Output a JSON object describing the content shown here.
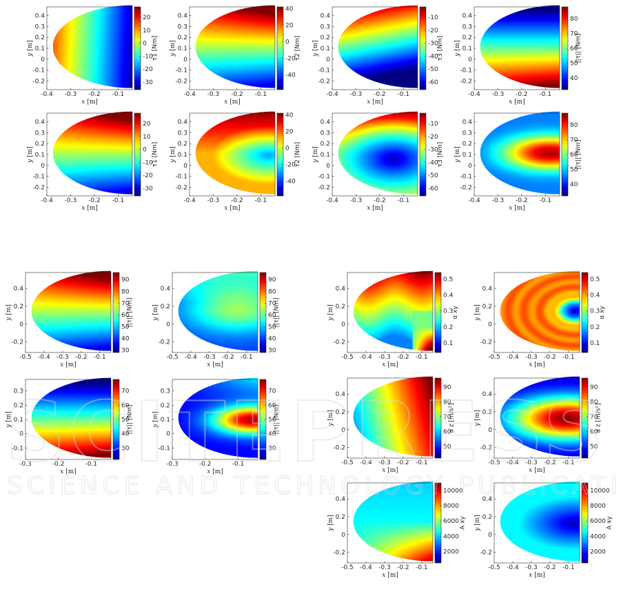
{
  "watermark": {
    "line1": "SCITEPRESS",
    "line2": "SCIENCE AND TECHNOLOGY PUBLICATIONS"
  },
  "colors": {
    "colormap": "jet",
    "axis": "#262626"
  },
  "chart_data": [
    {
      "type": "heatmap",
      "id": "p1",
      "xlabel": "x",
      "xunit": "[m]",
      "ylabel": "y",
      "yunit": "[m]",
      "cbar_label": "τ1 [Nm]",
      "xlim": [
        -0.4,
        -0.04
      ],
      "ylim": [
        -0.28,
        0.48
      ],
      "xticks": [
        -0.4,
        -0.3,
        -0.2,
        -0.1
      ],
      "yticks": [
        -0.2,
        -0.1,
        0,
        0.1,
        0.2,
        0.3,
        0.4
      ],
      "clim": [
        -36,
        28
      ],
      "cticks": [
        -30,
        -20,
        -10,
        0,
        10,
        20
      ],
      "pattern": "xgrad-pos"
    },
    {
      "type": "heatmap",
      "id": "p2",
      "xlabel": "x",
      "xunit": "[m]",
      "ylabel": "y",
      "yunit": "[m]",
      "cbar_label": "τ2 [Nm]",
      "xlim": [
        -0.4,
        -0.04
      ],
      "ylim": [
        -0.28,
        0.48
      ],
      "xticks": [
        -0.4,
        -0.3,
        -0.2,
        -0.1
      ],
      "yticks": [
        -0.2,
        -0.1,
        0,
        0.1,
        0.2,
        0.3,
        0.4
      ],
      "clim": [
        -58,
        42
      ],
      "cticks": [
        -40,
        -20,
        0,
        20,
        40
      ],
      "pattern": "ygrad-corner"
    },
    {
      "type": "heatmap",
      "id": "p3",
      "xlabel": "x",
      "xunit": "[m]",
      "ylabel": "y",
      "yunit": "[m]",
      "cbar_label": "τ3 [Nm]",
      "xlim": [
        -0.4,
        -0.04
      ],
      "ylim": [
        -0.28,
        0.48
      ],
      "xticks": [
        -0.4,
        -0.3,
        -0.2,
        -0.1
      ],
      "yticks": [
        -0.2,
        -0.1,
        0,
        0.1,
        0.2,
        0.3,
        0.4
      ],
      "clim": [
        -66,
        -2
      ],
      "cticks": [
        -60,
        -50,
        -40,
        -30,
        -20,
        -10
      ],
      "pattern": "ygrad-up"
    },
    {
      "type": "heatmap",
      "id": "p4",
      "xlabel": "x",
      "xunit": "[m]",
      "ylabel": "y",
      "yunit": "[m]",
      "cbar_label": "||τ|| [Nm]",
      "xlim": [
        -0.4,
        -0.04
      ],
      "ylim": [
        -0.28,
        0.48
      ],
      "xticks": [
        -0.4,
        -0.3,
        -0.2,
        -0.1
      ],
      "yticks": [
        -0.2,
        -0.1,
        0,
        0.1,
        0.2,
        0.3,
        0.4
      ],
      "clim": [
        32,
        88
      ],
      "cticks": [
        40,
        50,
        60,
        70,
        80
      ],
      "pattern": "ygrad-down"
    },
    {
      "type": "heatmap",
      "id": "p5",
      "xlabel": "x",
      "xunit": "[m]",
      "ylabel": "y",
      "yunit": "[m]",
      "cbar_label": "τ1 [Nm]",
      "xlim": [
        -0.4,
        -0.04
      ],
      "ylim": [
        -0.28,
        0.48
      ],
      "xticks": [
        -0.4,
        -0.3,
        -0.2,
        -0.1
      ],
      "yticks": [
        -0.2,
        -0.1,
        0,
        0.1,
        0.2,
        0.3,
        0.4
      ],
      "clim": [
        -36,
        28
      ],
      "cticks": [
        -30,
        -20,
        -10,
        0,
        10,
        20
      ],
      "pattern": "ygrad-corner"
    },
    {
      "type": "heatmap",
      "id": "p6",
      "xlabel": "x",
      "xunit": "[m]",
      "ylabel": "y",
      "yunit": "[m]",
      "cbar_label": "τ2 [Nm]",
      "xlim": [
        -0.4,
        -0.04
      ],
      "ylim": [
        -0.28,
        0.48
      ],
      "xticks": [
        -0.4,
        -0.3,
        -0.2,
        -0.1
      ],
      "yticks": [
        -0.2,
        -0.1,
        0,
        0.1,
        0.2,
        0.3,
        0.4
      ],
      "clim": [
        -58,
        42
      ],
      "cticks": [
        -40,
        -20,
        0,
        20,
        40
      ],
      "pattern": "blob-low"
    },
    {
      "type": "heatmap",
      "id": "p7",
      "xlabel": "x",
      "xunit": "[m]",
      "ylabel": "y",
      "yunit": "[m]",
      "cbar_label": "τ3 [Nm]",
      "xlim": [
        -0.4,
        -0.04
      ],
      "ylim": [
        -0.28,
        0.48
      ],
      "xticks": [
        -0.4,
        -0.3,
        -0.2,
        -0.1
      ],
      "yticks": [
        -0.2,
        -0.1,
        0,
        0.1,
        0.2,
        0.3,
        0.4
      ],
      "clim": [
        -66,
        -2
      ],
      "cticks": [
        -60,
        -50,
        -40,
        -30,
        -20,
        -10
      ],
      "pattern": "blob-low-wide"
    },
    {
      "type": "heatmap",
      "id": "p8",
      "xlabel": "x",
      "xunit": "[m]",
      "ylabel": "y",
      "yunit": "[m]",
      "cbar_label": "||τ|| [Nm]",
      "xlim": [
        -0.4,
        -0.04
      ],
      "ylim": [
        -0.28,
        0.48
      ],
      "xticks": [
        -0.4,
        -0.3,
        -0.2,
        -0.1
      ],
      "yticks": [
        -0.2,
        -0.1,
        0,
        0.1,
        0.2,
        0.3,
        0.4
      ],
      "clim": [
        32,
        88
      ],
      "cticks": [
        40,
        50,
        60,
        70,
        80
      ],
      "pattern": "blob-high"
    },
    {
      "type": "heatmap",
      "id": "p9",
      "xlabel": "x",
      "xunit": "[m]",
      "ylabel": "y",
      "yunit": "[m]",
      "cbar_label": "||τ|| [Nm]",
      "xlim": [
        -0.5,
        -0.04
      ],
      "ylim": [
        -0.32,
        0.58
      ],
      "xticks": [
        -0.5,
        -0.4,
        -0.3,
        -0.2,
        -0.1
      ],
      "yticks": [
        -0.2,
        0,
        0.2,
        0.4
      ],
      "clim": [
        28,
        96
      ],
      "cticks": [
        30,
        40,
        50,
        60,
        70,
        80,
        90
      ],
      "pattern": "ygrad-corner"
    },
    {
      "type": "heatmap",
      "id": "p10",
      "xlabel": "x",
      "xunit": "[m]",
      "ylabel": "y",
      "yunit": "[m]",
      "cbar_label": "||τ|| [Nm]",
      "xlim": [
        -0.5,
        -0.04
      ],
      "ylim": [
        -0.32,
        0.58
      ],
      "xticks": [
        -0.5,
        -0.4,
        -0.3,
        -0.2,
        -0.1
      ],
      "yticks": [
        -0.2,
        0,
        0.2,
        0.4
      ],
      "clim": [
        28,
        96
      ],
      "cticks": [
        30,
        40,
        50,
        60,
        70,
        80,
        90
      ],
      "pattern": "blob-mid"
    },
    {
      "type": "heatmap",
      "id": "p11",
      "xlabel": "x",
      "xunit": "[m]",
      "ylabel": "y",
      "yunit": "[m]",
      "cbar_label": "||τ|| [Nm]",
      "xlim": [
        -0.3,
        -0.04
      ],
      "ylim": [
        -0.18,
        0.38
      ],
      "xticks": [
        -0.3,
        -0.2,
        -0.1
      ],
      "yticks": [
        -0.1,
        0,
        0.1,
        0.2,
        0.3
      ],
      "clim": [
        22,
        78
      ],
      "cticks": [
        30,
        40,
        50,
        60,
        70
      ],
      "pattern": "ygrad-down"
    },
    {
      "type": "heatmap",
      "id": "p12",
      "xlabel": "x",
      "xunit": "[m]",
      "ylabel": "y",
      "yunit": "[m]",
      "cbar_label": "||τ|| [Nm]",
      "xlim": [
        -0.3,
        -0.04
      ],
      "ylim": [
        -0.18,
        0.38
      ],
      "xticks": [
        -0.3,
        -0.2,
        -0.1
      ],
      "yticks": [
        -0.1,
        0,
        0.1,
        0.2,
        0.3
      ],
      "clim": [
        22,
        78
      ],
      "cticks": [
        30,
        40,
        50,
        60,
        70
      ],
      "pattern": "blob-high-top"
    },
    {
      "type": "heatmap",
      "id": "p13",
      "xlabel": "x",
      "xunit": "[m]",
      "ylabel": "y",
      "yunit": "[m]",
      "cbar_label": "α xy",
      "xlim": [
        -0.5,
        -0.04
      ],
      "ylim": [
        -0.32,
        0.58
      ],
      "xticks": [
        -0.5,
        -0.4,
        -0.3,
        -0.2,
        -0.1
      ],
      "yticks": [
        -0.2,
        0,
        0.2,
        0.4
      ],
      "clim": [
        0.04,
        0.54
      ],
      "cticks": [
        0.1,
        0.2,
        0.3,
        0.4,
        0.5
      ],
      "pattern": "alpha-bands"
    },
    {
      "type": "heatmap",
      "id": "p14",
      "xlabel": "x",
      "xunit": "[m]",
      "ylabel": "y",
      "yunit": "[m]",
      "cbar_label": "α xy",
      "xlim": [
        -0.5,
        -0.04
      ],
      "ylim": [
        -0.32,
        0.58
      ],
      "xticks": [
        -0.5,
        -0.4,
        -0.3,
        -0.2,
        -0.1
      ],
      "yticks": [
        -0.2,
        0,
        0.2,
        0.4
      ],
      "clim": [
        0.04,
        0.54
      ],
      "cticks": [
        0.1,
        0.2,
        0.3,
        0.4,
        0.5
      ],
      "pattern": "rings-orange"
    },
    {
      "type": "heatmap",
      "id": "p15",
      "xlabel": "x",
      "xunit": "[m]",
      "ylabel": "y",
      "yunit": "[m]",
      "cbar_label": "a z [m/s²]",
      "xlim": [
        -0.5,
        -0.04
      ],
      "ylim": [
        -0.32,
        0.58
      ],
      "xticks": [
        -0.5,
        -0.4,
        -0.3,
        -0.2,
        -0.1
      ],
      "yticks": [
        -0.2,
        0,
        0.2,
        0.4
      ],
      "clim": [
        42,
        96
      ],
      "cticks": [
        50,
        60,
        70,
        80,
        90
      ],
      "pattern": "xgrad-right"
    },
    {
      "type": "heatmap",
      "id": "p16",
      "xlabel": "x",
      "xunit": "[m]",
      "ylabel": "y",
      "yunit": "[m]",
      "cbar_label": "a z [m/s²]",
      "xlim": [
        -0.5,
        -0.04
      ],
      "ylim": [
        -0.32,
        0.58
      ],
      "xticks": [
        -0.5,
        -0.4,
        -0.3,
        -0.2,
        -0.1
      ],
      "yticks": [
        -0.2,
        0,
        0.2,
        0.4
      ],
      "clim": [
        42,
        96
      ],
      "cticks": [
        50,
        60,
        70,
        80,
        90
      ],
      "pattern": "blob-high-wide"
    },
    {
      "type": "heatmap",
      "id": "p17",
      "xlabel": "x",
      "xunit": "[m]",
      "ylabel": "y",
      "yunit": "[m]",
      "cbar_label": "A xy",
      "xlim": [
        -0.5,
        -0.04
      ],
      "ylim": [
        -0.32,
        0.58
      ],
      "xticks": [
        -0.5,
        -0.4,
        -0.3,
        -0.2,
        -0.1
      ],
      "yticks": [
        -0.2,
        0,
        0.2,
        0.4
      ],
      "clim": [
        500,
        11000
      ],
      "cticks": [
        2000,
        4000,
        6000,
        8000,
        10000
      ],
      "pattern": "corner-low-right"
    },
    {
      "type": "heatmap",
      "id": "p18",
      "xlabel": "x",
      "xunit": "[m]",
      "ylabel": "y",
      "yunit": "[m]",
      "cbar_label": "A xy",
      "xlim": [
        -0.5,
        -0.04
      ],
      "ylim": [
        -0.32,
        0.58
      ],
      "xticks": [
        -0.5,
        -0.4,
        -0.3,
        -0.2,
        -0.1
      ],
      "yticks": [
        -0.2,
        0,
        0.2,
        0.4
      ],
      "clim": [
        500,
        11000
      ],
      "cticks": [
        2000,
        4000,
        6000,
        8000,
        10000
      ],
      "pattern": "blob-low-right"
    }
  ]
}
